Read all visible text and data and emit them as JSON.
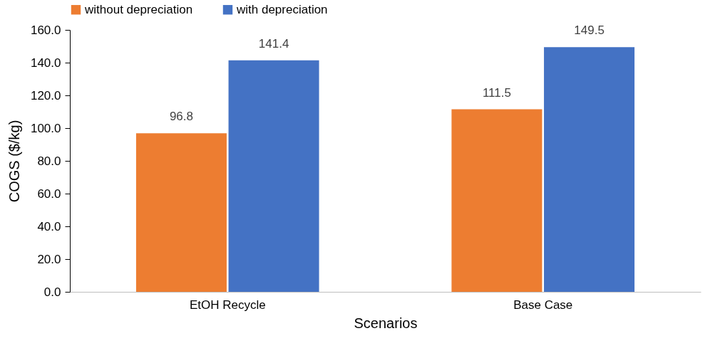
{
  "chart_data": {
    "type": "bar",
    "xlabel": "Scenarios",
    "ylabel": "COGS ($/kg)",
    "categories": [
      "EtOH Recycle",
      "Base Case"
    ],
    "series": [
      {
        "name": "without depreciation",
        "color": "#ed7d31",
        "values": [
          96.8,
          111.5
        ]
      },
      {
        "name": "with depreciation",
        "color": "#4472c4",
        "values": [
          141.4,
          149.5
        ]
      }
    ],
    "ylim": [
      0,
      160
    ],
    "yticks": [
      {
        "value": 0,
        "label": "0.0"
      },
      {
        "value": 20,
        "label": "20.0"
      },
      {
        "value": 40,
        "label": "40.0"
      },
      {
        "value": 60,
        "label": "60.0"
      },
      {
        "value": 80,
        "label": "80.0"
      },
      {
        "value": 100,
        "label": "100.0"
      },
      {
        "value": 120,
        "label": "120.0"
      },
      {
        "value": 140,
        "label": "140.0"
      },
      {
        "value": 160,
        "label": "160.0"
      }
    ],
    "data_labels": true,
    "grid": false,
    "legend": "top"
  }
}
